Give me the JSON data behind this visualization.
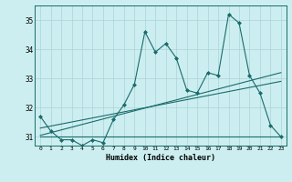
{
  "title": "",
  "xlabel": "Humidex (Indice chaleur)",
  "bg_color": "#cceef0",
  "grid_color": "#aad4d8",
  "line_color": "#1a6b6b",
  "x_min": -0.5,
  "x_max": 23.5,
  "y_min": 30.7,
  "y_max": 35.5,
  "yticks": [
    31,
    32,
    33,
    34,
    35
  ],
  "xticks": [
    0,
    1,
    2,
    3,
    4,
    5,
    6,
    7,
    8,
    9,
    10,
    11,
    12,
    13,
    14,
    15,
    16,
    17,
    18,
    19,
    20,
    21,
    22,
    23
  ],
  "series1": [
    31.7,
    31.2,
    30.9,
    30.9,
    30.7,
    30.9,
    30.8,
    31.6,
    32.1,
    32.8,
    34.6,
    33.9,
    34.2,
    33.7,
    32.6,
    32.5,
    33.2,
    33.1,
    35.2,
    34.9,
    33.1,
    32.5,
    31.4,
    31.0
  ],
  "flat_line_y": 31.0,
  "trend1_x0": 0,
  "trend1_y0": 31.05,
  "trend1_x1": 23,
  "trend1_y1": 33.2,
  "trend2_x0": 0,
  "trend2_y0": 31.3,
  "trend2_x1": 23,
  "trend2_y1": 32.9
}
